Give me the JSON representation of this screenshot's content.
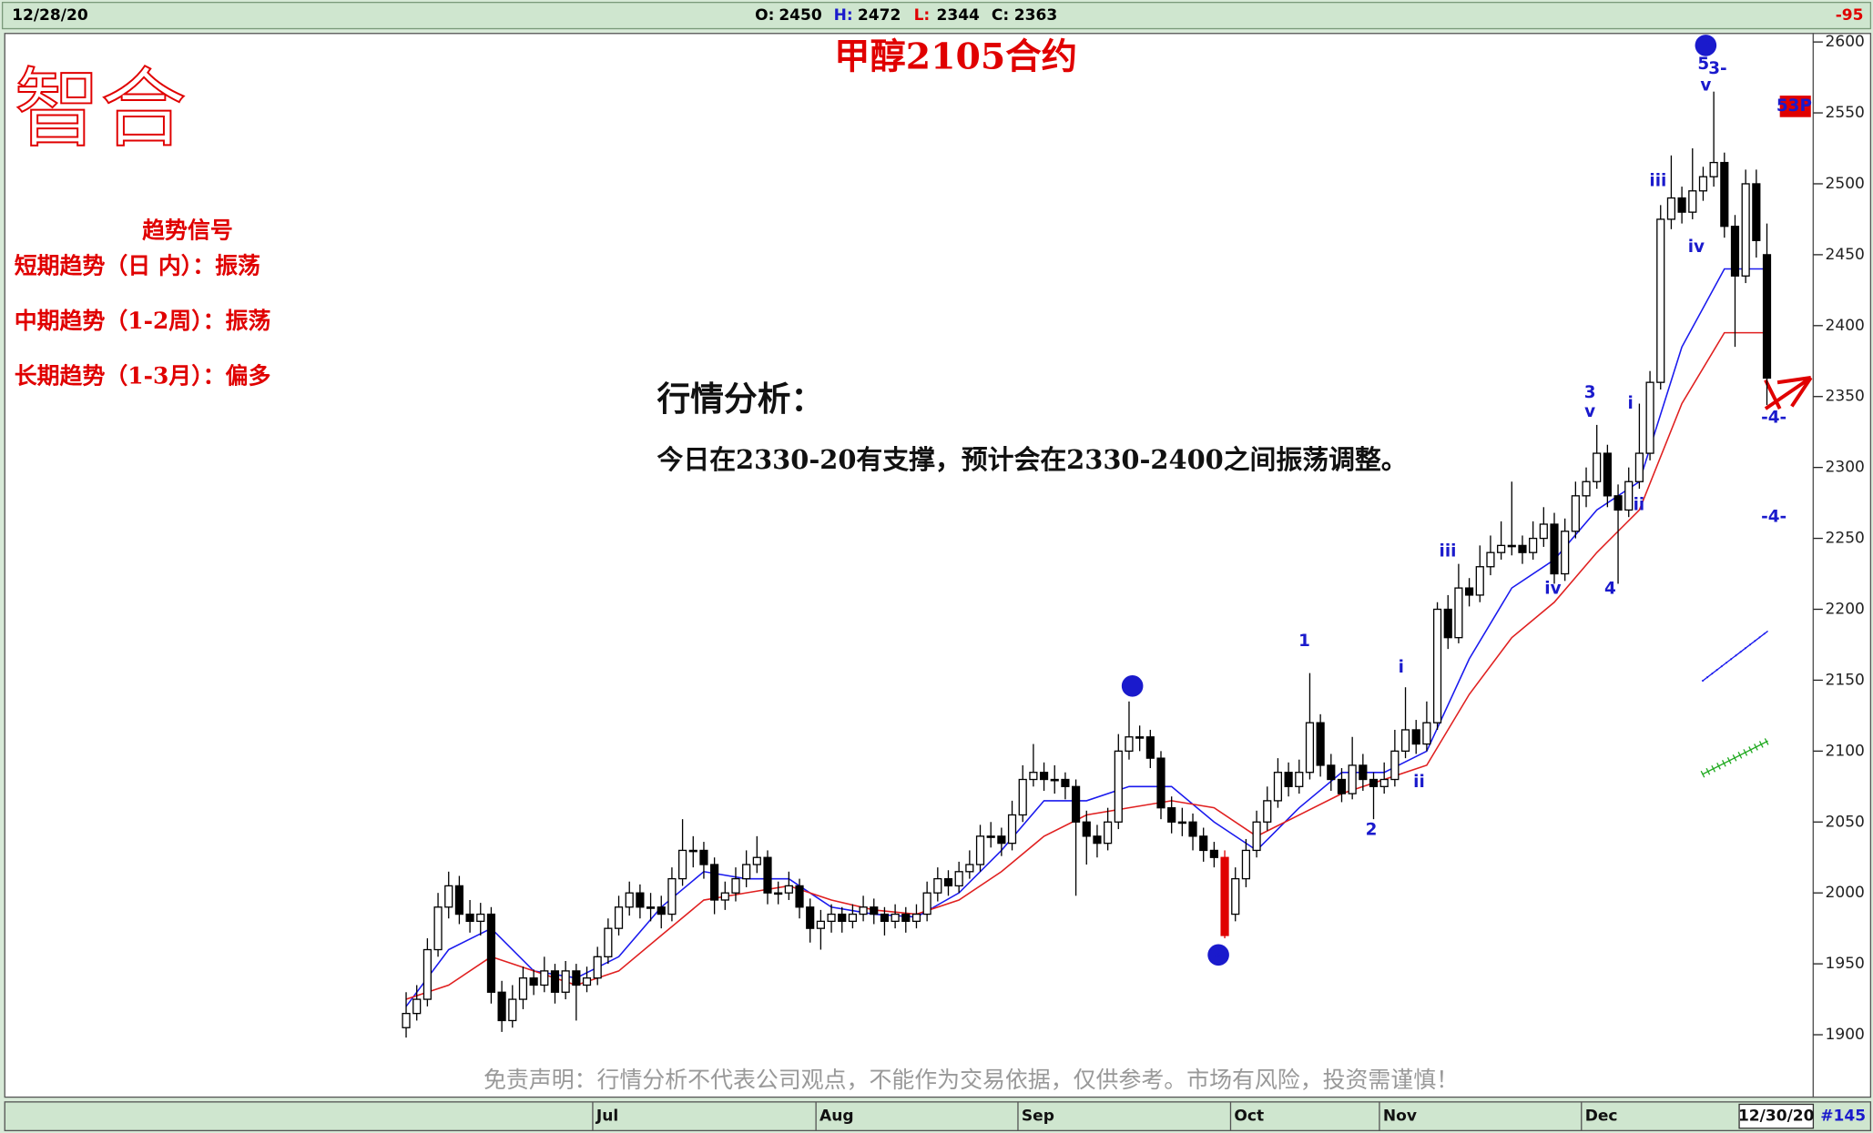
{
  "header": {
    "date": "12/28/20",
    "open_label": "O:",
    "open": 2450,
    "high_label": "H:",
    "high": 2472,
    "low_label": "L:",
    "low": 2344,
    "close_label": "C:",
    "close": 2363,
    "change": -95
  },
  "logo": "智合",
  "signals": {
    "title": "趋势信号",
    "lines": [
      "短期趋势（日 内）：振荡",
      "中期趋势（1-2周）：振荡",
      "长期趋势（1-3月）：偏多"
    ]
  },
  "analysis": {
    "title": "行情分析：",
    "text": "今日在2330-20有支撑，预计会在2330-2400之间振荡调整。"
  },
  "disclaimer": "免责声明：行情分析不代表公司观点，不能作为交易依据，仅供参考。市场有风险，投资需谨慎！",
  "footer": {
    "last_date": "12/30/20",
    "bar_count": "#145"
  },
  "chart_data": {
    "type": "candlestick",
    "title": "甲醇2105合约",
    "ylim": [
      1856,
      2606
    ],
    "yticks": [
      1900,
      1950,
      2000,
      2050,
      2100,
      2150,
      2200,
      2250,
      2300,
      2350,
      2400,
      2450,
      2500,
      2550,
      2600
    ],
    "xticks": [
      {
        "value": 18,
        "label": "Jul"
      },
      {
        "value": 39,
        "label": "Aug"
      },
      {
        "value": 58,
        "label": "Sep"
      },
      {
        "value": 78,
        "label": "Oct"
      },
      {
        "value": 92,
        "label": "Nov"
      },
      {
        "value": 111,
        "label": "Dec"
      }
    ],
    "up_color": "#ffffff",
    "down_color": "#000000",
    "highlight_color": "#e00000",
    "highlight": [
      77
    ],
    "series": [
      {
        "values": [
          [
            1905,
            1930,
            1898,
            1915
          ],
          [
            1915,
            1935,
            1910,
            1925
          ],
          [
            1925,
            1968,
            1920,
            1960
          ],
          [
            1960,
            2000,
            1955,
            1990
          ],
          [
            1990,
            2015,
            1982,
            2005
          ],
          [
            2005,
            2012,
            1978,
            1985
          ],
          [
            1985,
            1995,
            1972,
            1980
          ],
          [
            1980,
            1993,
            1970,
            1985
          ],
          [
            1985,
            1990,
            1922,
            1930
          ],
          [
            1930,
            1938,
            1902,
            1910
          ],
          [
            1910,
            1935,
            1905,
            1925
          ],
          [
            1925,
            1948,
            1918,
            1940
          ],
          [
            1940,
            1946,
            1928,
            1935
          ],
          [
            1935,
            1955,
            1930,
            1945
          ],
          [
            1945,
            1950,
            1922,
            1930
          ],
          [
            1930,
            1952,
            1925,
            1945
          ],
          [
            1945,
            1950,
            1910,
            1935
          ],
          [
            1935,
            1948,
            1930,
            1940
          ],
          [
            1940,
            1962,
            1935,
            1955
          ],
          [
            1955,
            1982,
            1950,
            1975
          ],
          [
            1975,
            1998,
            1970,
            1990
          ],
          [
            1990,
            2008,
            1984,
            2000
          ],
          [
            2000,
            2006,
            1982,
            1990
          ],
          [
            1990,
            2000,
            1980,
            1990
          ],
          [
            1990,
            1998,
            1975,
            1985
          ],
          [
            1985,
            2018,
            1980,
            2010
          ],
          [
            2010,
            2052,
            2005,
            2030
          ],
          [
            2030,
            2040,
            2018,
            2030
          ],
          [
            2030,
            2036,
            2010,
            2020
          ],
          [
            2020,
            2025,
            1985,
            1995
          ],
          [
            1995,
            2008,
            1988,
            2000
          ],
          [
            2000,
            2018,
            1994,
            2010
          ],
          [
            2010,
            2030,
            2004,
            2020
          ],
          [
            2020,
            2040,
            2014,
            2025
          ],
          [
            2025,
            2030,
            1992,
            2000
          ],
          [
            2000,
            2008,
            1992,
            2000
          ],
          [
            2000,
            2015,
            1995,
            2005
          ],
          [
            2005,
            2010,
            1982,
            1990
          ],
          [
            1990,
            1996,
            1965,
            1975
          ],
          [
            1975,
            1988,
            1960,
            1980
          ],
          [
            1980,
            1992,
            1972,
            1985
          ],
          [
            1985,
            1990,
            1972,
            1980
          ],
          [
            1980,
            1992,
            1975,
            1985
          ],
          [
            1985,
            1998,
            1980,
            1990
          ],
          [
            1990,
            1996,
            1978,
            1985
          ],
          [
            1985,
            1990,
            1970,
            1980
          ],
          [
            1980,
            1992,
            1975,
            1985
          ],
          [
            1985,
            1990,
            1972,
            1980
          ],
          [
            1980,
            1992,
            1975,
            1985
          ],
          [
            1985,
            2008,
            1980,
            2000
          ],
          [
            2000,
            2018,
            1994,
            2010
          ],
          [
            2010,
            2016,
            1998,
            2005
          ],
          [
            2005,
            2022,
            2000,
            2015
          ],
          [
            2015,
            2030,
            2010,
            2020
          ],
          [
            2020,
            2048,
            2015,
            2040
          ],
          [
            2040,
            2050,
            2032,
            2040
          ],
          [
            2040,
            2046,
            2026,
            2035
          ],
          [
            2035,
            2065,
            2030,
            2055
          ],
          [
            2055,
            2090,
            2050,
            2080
          ],
          [
            2080,
            2105,
            2075,
            2085
          ],
          [
            2085,
            2092,
            2072,
            2080
          ],
          [
            2080,
            2090,
            2070,
            2080
          ],
          [
            2080,
            2085,
            2066,
            2075
          ],
          [
            2075,
            2080,
            1998,
            2050
          ],
          [
            2050,
            2058,
            2020,
            2040
          ],
          [
            2040,
            2048,
            2025,
            2035
          ],
          [
            2035,
            2060,
            2030,
            2050
          ],
          [
            2050,
            2112,
            2045,
            2100
          ],
          [
            2100,
            2135,
            2094,
            2110
          ],
          [
            2110,
            2118,
            2100,
            2110
          ],
          [
            2110,
            2115,
            2088,
            2095
          ],
          [
            2095,
            2100,
            2052,
            2060
          ],
          [
            2060,
            2068,
            2042,
            2050
          ],
          [
            2050,
            2060,
            2040,
            2050
          ],
          [
            2050,
            2056,
            2030,
            2040
          ],
          [
            2040,
            2046,
            2022,
            2030
          ],
          [
            2030,
            2036,
            2018,
            2025
          ],
          [
            2025,
            2030,
            1968,
            1970
          ],
          [
            1985,
            2018,
            1980,
            2010
          ],
          [
            2010,
            2038,
            2004,
            2030
          ],
          [
            2030,
            2058,
            2025,
            2050
          ],
          [
            2050,
            2075,
            2044,
            2065
          ],
          [
            2065,
            2095,
            2060,
            2085
          ],
          [
            2085,
            2092,
            2068,
            2075
          ],
          [
            2075,
            2094,
            2070,
            2085
          ],
          [
            2085,
            2155,
            2080,
            2120
          ],
          [
            2120,
            2126,
            2082,
            2090
          ],
          [
            2090,
            2098,
            2072,
            2080
          ],
          [
            2080,
            2088,
            2064,
            2070
          ],
          [
            2070,
            2110,
            2066,
            2090
          ],
          [
            2090,
            2098,
            2072,
            2080
          ],
          [
            2080,
            2085,
            2052,
            2075
          ],
          [
            2075,
            2092,
            2070,
            2080
          ],
          [
            2080,
            2115,
            2075,
            2100
          ],
          [
            2100,
            2145,
            2095,
            2115
          ],
          [
            2115,
            2122,
            2098,
            2105
          ],
          [
            2105,
            2135,
            2100,
            2120
          ],
          [
            2120,
            2205,
            2115,
            2200
          ],
          [
            2200,
            2210,
            2172,
            2180
          ],
          [
            2180,
            2232,
            2176,
            2215
          ],
          [
            2215,
            2222,
            2202,
            2210
          ],
          [
            2210,
            2245,
            2205,
            2230
          ],
          [
            2230,
            2252,
            2224,
            2240
          ],
          [
            2240,
            2262,
            2235,
            2245
          ],
          [
            2245,
            2290,
            2238,
            2245
          ],
          [
            2245,
            2252,
            2232,
            2240
          ],
          [
            2240,
            2262,
            2235,
            2250
          ],
          [
            2250,
            2272,
            2244,
            2260
          ],
          [
            2260,
            2268,
            2218,
            2225
          ],
          [
            2225,
            2264,
            2220,
            2255
          ],
          [
            2255,
            2290,
            2250,
            2280
          ],
          [
            2280,
            2300,
            2272,
            2290
          ],
          [
            2290,
            2330,
            2285,
            2310
          ],
          [
            2310,
            2316,
            2272,
            2280
          ],
          [
            2280,
            2288,
            2218,
            2270
          ],
          [
            2270,
            2300,
            2265,
            2290
          ],
          [
            2290,
            2345,
            2285,
            2310
          ],
          [
            2310,
            2368,
            2305,
            2360
          ],
          [
            2360,
            2485,
            2355,
            2475
          ],
          [
            2475,
            2520,
            2468,
            2490
          ],
          [
            2490,
            2498,
            2472,
            2480
          ],
          [
            2480,
            2525,
            2475,
            2495
          ],
          [
            2495,
            2512,
            2488,
            2505
          ],
          [
            2505,
            2565,
            2498,
            2515
          ],
          [
            2515,
            2522,
            2462,
            2470
          ],
          [
            2470,
            2478,
            2385,
            2435
          ],
          [
            2435,
            2510,
            2430,
            2500
          ],
          [
            2500,
            2510,
            2448,
            2460
          ],
          [
            2450,
            2472,
            2344,
            2363
          ]
        ]
      }
    ],
    "ma_lines": [
      {
        "color": "#1a1aee",
        "x": [
          0,
          4,
          8,
          12,
          16,
          20,
          24,
          28,
          32,
          36,
          40,
          44,
          48,
          52,
          56,
          60,
          64,
          68,
          72,
          76,
          80,
          84,
          88,
          92,
          96,
          100,
          104,
          108,
          112,
          116,
          120,
          124,
          128
        ],
        "values": [
          1920,
          1960,
          1975,
          1945,
          1940,
          1955,
          1990,
          2015,
          2010,
          2010,
          1990,
          1985,
          1983,
          2000,
          2030,
          2065,
          2065,
          2075,
          2075,
          2050,
          2030,
          2060,
          2085,
          2085,
          2100,
          2165,
          2215,
          2235,
          2270,
          2290,
          2385,
          2440,
          2440
        ]
      },
      {
        "color": "#e02020",
        "x": [
          0,
          4,
          8,
          12,
          16,
          20,
          24,
          28,
          32,
          36,
          40,
          44,
          48,
          52,
          56,
          60,
          64,
          68,
          72,
          76,
          80,
          84,
          88,
          92,
          96,
          100,
          104,
          108,
          112,
          116,
          120,
          124,
          128
        ],
        "values": [
          1925,
          1935,
          1955,
          1945,
          1935,
          1945,
          1970,
          1995,
          2000,
          2005,
          1995,
          1988,
          1985,
          1995,
          2015,
          2040,
          2055,
          2060,
          2065,
          2060,
          2040,
          2055,
          2070,
          2080,
          2090,
          2140,
          2180,
          2205,
          2240,
          2270,
          2345,
          2395,
          2395
        ]
      }
    ],
    "annotations": [
      {
        "text": "1",
        "circled": true
      },
      {
        "text": "2",
        "circled": true
      },
      {
        "text": "3",
        "circled": true
      },
      {
        "text": "5"
      },
      {
        "text": "3-"
      },
      {
        "text": "v"
      },
      {
        "text": "iii"
      },
      {
        "text": "iv"
      },
      {
        "text": "3"
      },
      {
        "text": "v"
      },
      {
        "text": "i"
      },
      {
        "text": "ii"
      },
      {
        "text": "iii"
      },
      {
        "text": "iv"
      },
      {
        "text": "4"
      },
      {
        "text": "1"
      },
      {
        "text": "2"
      },
      {
        "text": "i"
      },
      {
        "text": "ii"
      },
      {
        "text": "-4-"
      },
      {
        "text": "-4-"
      },
      {
        "text": "53P",
        "boxed": true
      }
    ]
  }
}
